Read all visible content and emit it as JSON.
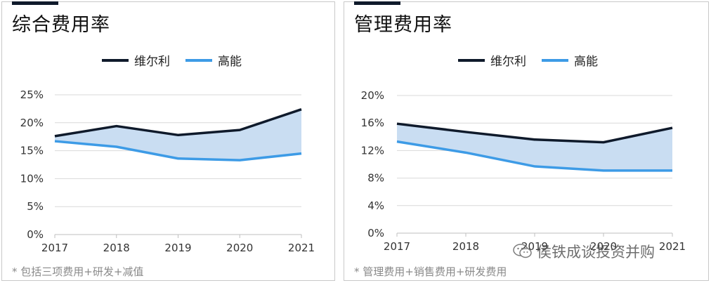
{
  "colors": {
    "welly": "#0f1a2b",
    "gaoneng": "#3d9be6",
    "fill": "#c9ddf2"
  },
  "watermark": "侯铁成谈投资并购",
  "chart_data": [
    {
      "type": "line",
      "title": "综合费用率",
      "x": [
        "2017",
        "2018",
        "2019",
        "2020",
        "2021"
      ],
      "yticks": [
        "0%",
        "5%",
        "10%",
        "15%",
        "20%",
        "25%"
      ],
      "ylim": [
        0,
        25
      ],
      "series": [
        {
          "name": "维尔利",
          "values": [
            17.6,
            19.4,
            17.8,
            18.7,
            22.4
          ]
        },
        {
          "name": "高能",
          "values": [
            16.7,
            15.7,
            13.6,
            13.3,
            14.5
          ]
        }
      ],
      "footnote": "* 包括三项费用+研发+减值",
      "grid": true,
      "legend": "top"
    },
    {
      "type": "line",
      "title": "管理费用率",
      "x": [
        "2017",
        "2018",
        "2019",
        "2020",
        "2021"
      ],
      "yticks": [
        "0%",
        "4%",
        "8%",
        "12%",
        "16%",
        "20%"
      ],
      "ylim": [
        0,
        20
      ],
      "series": [
        {
          "name": "维尔利",
          "values": [
            15.9,
            14.7,
            13.6,
            13.2,
            15.3
          ]
        },
        {
          "name": "高能",
          "values": [
            13.3,
            11.7,
            9.7,
            9.1,
            9.1
          ]
        }
      ],
      "footnote": "* 管理费用+销售费用+研发费用",
      "grid": true,
      "legend": "top"
    }
  ]
}
